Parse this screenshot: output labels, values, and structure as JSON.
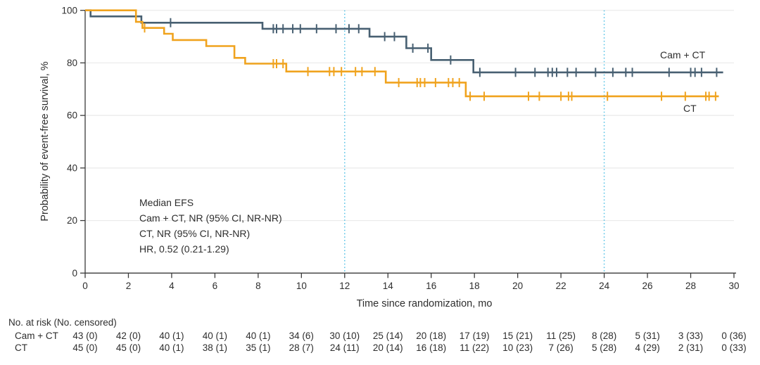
{
  "chart_data": {
    "type": "line",
    "subtype": "kaplan-meier-step",
    "title": "",
    "xlabel": "Time since randomization, mo",
    "ylabel": "Probability of event-free survival, %",
    "xlim": [
      0,
      30
    ],
    "ylim": [
      0,
      100
    ],
    "x_ticks": [
      0,
      2,
      4,
      6,
      8,
      10,
      12,
      14,
      16,
      18,
      20,
      22,
      24,
      26,
      28,
      30
    ],
    "y_ticks": [
      0,
      20,
      40,
      60,
      80,
      100
    ],
    "grid": "horizontal-light",
    "reference_lines_x": [
      12,
      24
    ],
    "annotation_lines": [
      "Median EFS",
      "Cam + CT, NR (95% CI, NR-NR)",
      "CT, NR (95% CI, NR-NR)",
      "HR, 0.52 (0.21-1.29)"
    ],
    "series": [
      {
        "name": "Cam + CT",
        "color": "#486072",
        "steps": [
          [
            0,
            100
          ],
          [
            0.25,
            97.7
          ],
          [
            2.6,
            95.3
          ],
          [
            8.2,
            93.0
          ],
          [
            13.15,
            90.0
          ],
          [
            14.85,
            85.6
          ],
          [
            16.0,
            81.1
          ],
          [
            17.95,
            76.4
          ],
          [
            29.5,
            76.4
          ]
        ],
        "censor_marks": [
          [
            3.95,
            95.3
          ],
          [
            8.7,
            93.0
          ],
          [
            8.85,
            93.0
          ],
          [
            9.15,
            93.0
          ],
          [
            9.6,
            93.0
          ],
          [
            9.95,
            93.0
          ],
          [
            10.7,
            93.0
          ],
          [
            11.6,
            93.0
          ],
          [
            12.2,
            93.0
          ],
          [
            12.65,
            93.0
          ],
          [
            13.85,
            90.0
          ],
          [
            14.3,
            90.0
          ],
          [
            15.15,
            85.6
          ],
          [
            15.85,
            85.6
          ],
          [
            16.9,
            81.1
          ],
          [
            18.25,
            76.4
          ],
          [
            19.9,
            76.4
          ],
          [
            20.8,
            76.4
          ],
          [
            21.4,
            76.4
          ],
          [
            21.6,
            76.4
          ],
          [
            21.8,
            76.4
          ],
          [
            22.3,
            76.4
          ],
          [
            22.7,
            76.4
          ],
          [
            23.6,
            76.4
          ],
          [
            24.4,
            76.4
          ],
          [
            25.0,
            76.4
          ],
          [
            25.3,
            76.4
          ],
          [
            27.0,
            76.4
          ],
          [
            28.0,
            76.4
          ],
          [
            28.2,
            76.4
          ],
          [
            28.5,
            76.4
          ],
          [
            29.2,
            76.4
          ]
        ]
      },
      {
        "name": "CT",
        "color": "#F0A31E",
        "steps": [
          [
            0,
            100
          ],
          [
            2.35,
            95.6
          ],
          [
            2.65,
            93.3
          ],
          [
            3.65,
            91.1
          ],
          [
            4.05,
            88.7
          ],
          [
            5.6,
            86.4
          ],
          [
            6.9,
            81.9
          ],
          [
            7.4,
            79.7
          ],
          [
            9.3,
            76.7
          ],
          [
            13.9,
            72.5
          ],
          [
            17.6,
            67.3
          ],
          [
            29.3,
            67.3
          ]
        ],
        "censor_marks": [
          [
            2.75,
            93.3
          ],
          [
            8.7,
            79.7
          ],
          [
            8.85,
            79.7
          ],
          [
            9.15,
            79.7
          ],
          [
            10.3,
            76.7
          ],
          [
            11.3,
            76.7
          ],
          [
            11.5,
            76.7
          ],
          [
            11.85,
            76.7
          ],
          [
            12.5,
            76.7
          ],
          [
            12.8,
            76.7
          ],
          [
            13.4,
            76.7
          ],
          [
            14.5,
            72.5
          ],
          [
            15.35,
            72.5
          ],
          [
            15.5,
            72.5
          ],
          [
            15.7,
            72.5
          ],
          [
            16.2,
            72.5
          ],
          [
            16.8,
            72.5
          ],
          [
            17.0,
            72.5
          ],
          [
            17.3,
            72.5
          ],
          [
            17.8,
            67.3
          ],
          [
            18.45,
            67.3
          ],
          [
            20.5,
            67.3
          ],
          [
            21.0,
            67.3
          ],
          [
            22.0,
            67.3
          ],
          [
            22.35,
            67.3
          ],
          [
            22.5,
            67.3
          ],
          [
            24.15,
            67.3
          ],
          [
            26.65,
            67.3
          ],
          [
            27.75,
            67.3
          ],
          [
            28.7,
            67.3
          ],
          [
            28.85,
            67.3
          ],
          [
            29.15,
            67.3
          ]
        ]
      }
    ]
  },
  "risk_table": {
    "title": "No. at risk (No. censored)",
    "time_points": [
      0,
      2,
      4,
      6,
      8,
      10,
      12,
      14,
      16,
      18,
      20,
      22,
      24,
      26,
      28,
      30
    ],
    "rows": [
      {
        "label": "Cam + CT",
        "values": [
          "43 (0)",
          "42 (0)",
          "40 (1)",
          "40 (1)",
          "40 (1)",
          "34 (6)",
          "30 (10)",
          "25 (14)",
          "20 (18)",
          "17 (19)",
          "15 (21)",
          "11 (25)",
          "8 (28)",
          "5 (31)",
          "3 (33)",
          "0 (36)"
        ]
      },
      {
        "label": "CT",
        "values": [
          "45 (0)",
          "45 (0)",
          "40 (1)",
          "38 (1)",
          "35 (1)",
          "28 (7)",
          "24 (11)",
          "20 (14)",
          "16 (18)",
          "11 (22)",
          "10 (23)",
          "7 (26)",
          "5 (28)",
          "4 (29)",
          "2 (31)",
          "0 (33)"
        ]
      }
    ]
  },
  "colors": {
    "cam_ct_line": "#486072",
    "ct_line": "#F0A31E",
    "reference_line": "#56C2E6",
    "axis": "#3a3a3a",
    "grid": "#eaeaea",
    "text": "#2e2e2e"
  }
}
